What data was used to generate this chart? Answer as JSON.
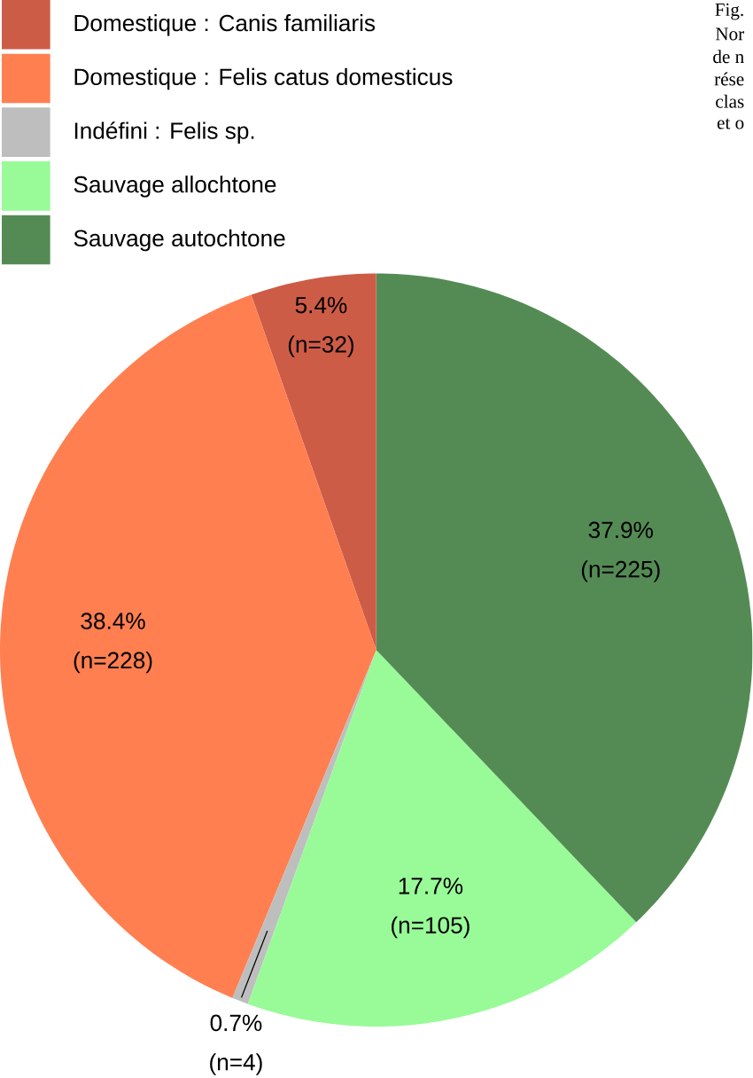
{
  "chart_data": {
    "type": "pie",
    "categories": [
      "Domestique : Canis familiaris",
      "Domestique : Felis catus domesticus",
      "Indéfini : Felis sp.",
      "Sauvage allochtone",
      "Sauvage autochtone"
    ],
    "values": [
      5.4,
      38.4,
      0.7,
      17.7,
      37.9
    ],
    "colors": [
      "#cd5c47",
      "#ff7f50",
      "#bebebe",
      "#98fb98",
      "#548b54"
    ],
    "value_labels": [
      "5.4% (n=32)",
      "38.4% (n=228)",
      "0.7% (n=4)",
      "17.7% (n=105)",
      "37.9% (n=225)"
    ],
    "legend": "top left",
    "annotations": [
      "Fig.",
      "Nor",
      "de n",
      "rése",
      "clas",
      "et o"
    ]
  }
}
